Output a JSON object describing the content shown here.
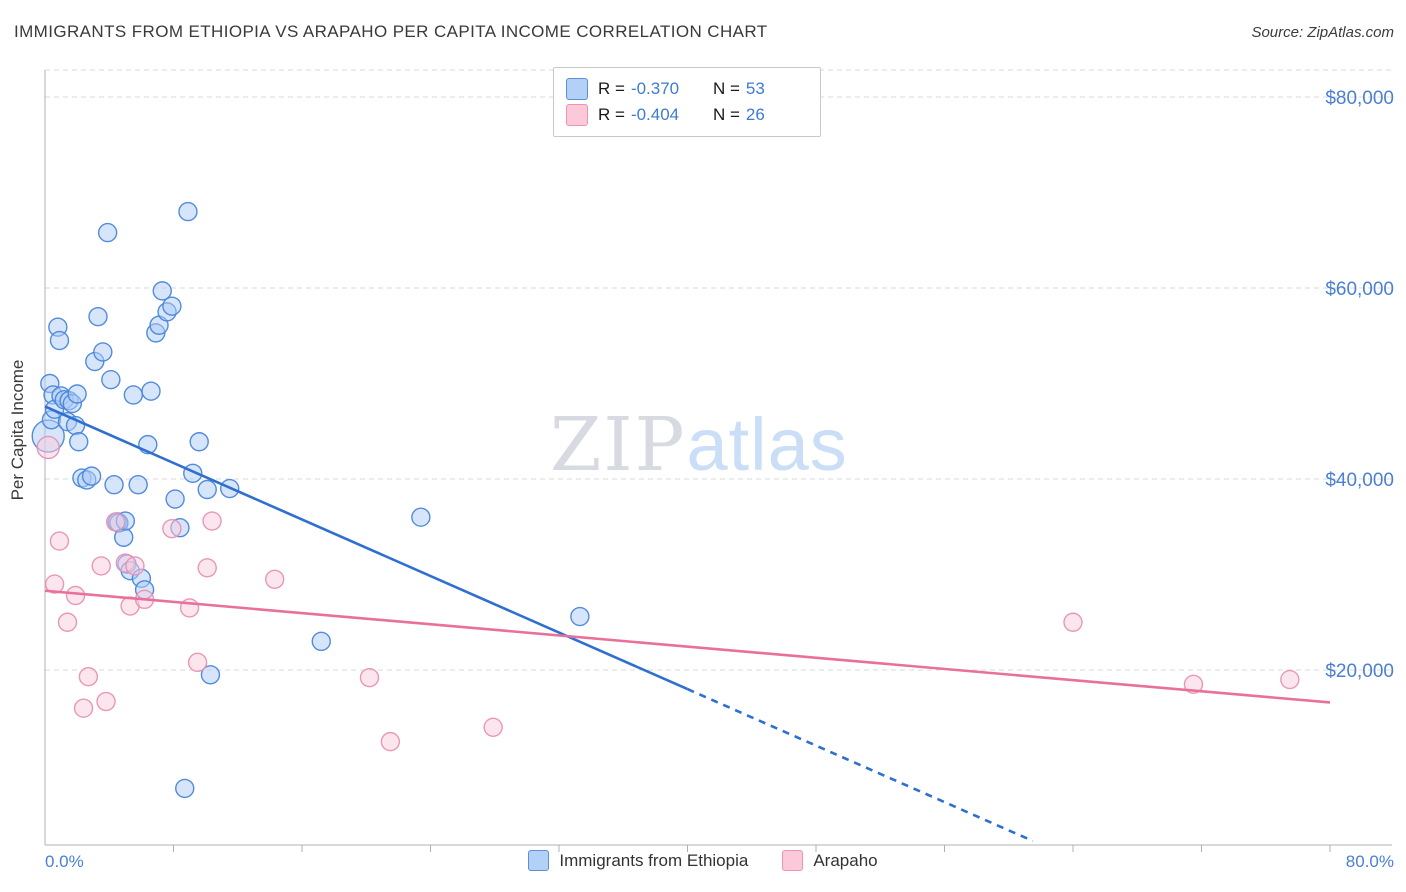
{
  "header": {
    "title": "IMMIGRANTS FROM ETHIOPIA VS ARAPAHO PER CAPITA INCOME CORRELATION CHART",
    "source": "Source: ZipAtlas.com"
  },
  "legend_box": {
    "rows": [
      {
        "r_label": "R =",
        "r_value": "-0.370",
        "n_label": "N =",
        "n_value": "53"
      },
      {
        "r_label": "R =",
        "r_value": "-0.404",
        "n_label": "N =",
        "n_value": "26"
      }
    ]
  },
  "watermark": {
    "zip": "ZIP",
    "atlas": "atlas"
  },
  "axes": {
    "y_label": "Per Capita Income",
    "x_min_label": "0.0%",
    "x_max_label": "80.0%"
  },
  "bottom_legend": [
    {
      "label": "Immigrants from Ethiopia",
      "fill": "#b3d0f7",
      "border": "#5b8fd9"
    },
    {
      "label": "Arapaho",
      "fill": "#fbc9da",
      "border": "#ef93b4"
    }
  ],
  "chart_data": {
    "type": "scatter",
    "xlabel": "Immigrants from Ethiopia (%)",
    "ylabel": "Per Capita Income",
    "xlim": [
      0,
      80
    ],
    "ylim": [
      0,
      82800
    ],
    "grid": "horizontal-dashed",
    "legend_position": "top-center",
    "y_ticks": [
      {
        "value": 80000,
        "label": "$80,000"
      },
      {
        "value": 60000,
        "label": "$60,000"
      },
      {
        "value": 40000,
        "label": "$40,000"
      },
      {
        "value": 20000,
        "label": "$20,000"
      }
    ],
    "x_tick_positions": [
      8,
      16,
      24,
      32,
      40,
      48,
      56,
      64,
      72,
      80
    ],
    "series": [
      {
        "name": "Immigrants from Ethiopia",
        "fill": "#aecbf5",
        "stroke": "#4a86d8",
        "r_value": -0.37,
        "n": 53,
        "points": [
          [
            0.2,
            44500,
            16
          ],
          [
            0.3,
            50000
          ],
          [
            0.4,
            46200
          ],
          [
            0.5,
            48800
          ],
          [
            0.6,
            47300
          ],
          [
            0.8,
            55900
          ],
          [
            0.9,
            54500
          ],
          [
            1.0,
            48700
          ],
          [
            1.2,
            48300
          ],
          [
            1.4,
            46000
          ],
          [
            1.5,
            48200
          ],
          [
            1.7,
            47900
          ],
          [
            1.9,
            45600
          ],
          [
            2.0,
            48900
          ],
          [
            2.1,
            43900
          ],
          [
            2.3,
            40100
          ],
          [
            2.6,
            39900
          ],
          [
            2.9,
            40300
          ],
          [
            3.1,
            52300
          ],
          [
            3.3,
            57000
          ],
          [
            3.6,
            53300
          ],
          [
            3.9,
            65800
          ],
          [
            4.1,
            50400
          ],
          [
            4.3,
            39400
          ],
          [
            4.5,
            35500
          ],
          [
            4.6,
            35400
          ],
          [
            4.9,
            33900
          ],
          [
            5.0,
            35600
          ],
          [
            5.1,
            31100
          ],
          [
            5.3,
            30400
          ],
          [
            5.5,
            48800
          ],
          [
            5.8,
            39400
          ],
          [
            6.0,
            29600
          ],
          [
            6.2,
            28400
          ],
          [
            6.4,
            43600
          ],
          [
            6.6,
            49200
          ],
          [
            6.9,
            55300
          ],
          [
            7.1,
            56100
          ],
          [
            7.3,
            59700
          ],
          [
            7.6,
            57500
          ],
          [
            7.9,
            58100
          ],
          [
            8.1,
            37900
          ],
          [
            8.4,
            34900
          ],
          [
            8.7,
            7600
          ],
          [
            8.9,
            68000
          ],
          [
            9.2,
            40600
          ],
          [
            9.6,
            43900
          ],
          [
            10.1,
            38900
          ],
          [
            10.3,
            19500
          ],
          [
            11.5,
            39000
          ],
          [
            17.2,
            23000
          ],
          [
            23.4,
            36000
          ],
          [
            33.3,
            25600
          ]
        ]
      },
      {
        "name": "Arapaho",
        "fill": "#f9cddd",
        "stroke": "#e891b4",
        "r_value": -0.404,
        "n": 26,
        "points": [
          [
            0.2,
            43300,
            11
          ],
          [
            0.6,
            29000
          ],
          [
            0.9,
            33500
          ],
          [
            1.4,
            25000
          ],
          [
            1.9,
            27800
          ],
          [
            2.4,
            16000
          ],
          [
            2.7,
            19300
          ],
          [
            3.5,
            30900
          ],
          [
            3.8,
            16700
          ],
          [
            4.4,
            35500
          ],
          [
            5.0,
            31200
          ],
          [
            5.3,
            26700
          ],
          [
            5.6,
            30900
          ],
          [
            6.2,
            27400
          ],
          [
            7.9,
            34800
          ],
          [
            9.0,
            26500
          ],
          [
            9.5,
            20800
          ],
          [
            10.1,
            30700
          ],
          [
            10.4,
            35600
          ],
          [
            14.3,
            29500
          ],
          [
            20.2,
            19200
          ],
          [
            21.5,
            12500
          ],
          [
            27.9,
            14000
          ],
          [
            64.0,
            25000
          ],
          [
            71.5,
            18500
          ],
          [
            77.5,
            19000
          ]
        ]
      }
    ],
    "trend_lines": [
      {
        "series": "Immigrants from Ethiopia",
        "color": "#2e6fd0",
        "width": 2.6,
        "segments": [
          {
            "x1": 0,
            "y1": 47600,
            "x2": 40,
            "y2": 18000,
            "dash": false
          },
          {
            "x1": 40,
            "y1": 18000,
            "x2": 61.5,
            "y2": 2100,
            "dash": true
          }
        ]
      },
      {
        "series": "Arapaho",
        "color": "#e8709a",
        "width": 2.6,
        "segments": [
          {
            "x1": 0,
            "y1": 28300,
            "x2": 80,
            "y2": 16600,
            "dash": false
          }
        ]
      }
    ]
  }
}
